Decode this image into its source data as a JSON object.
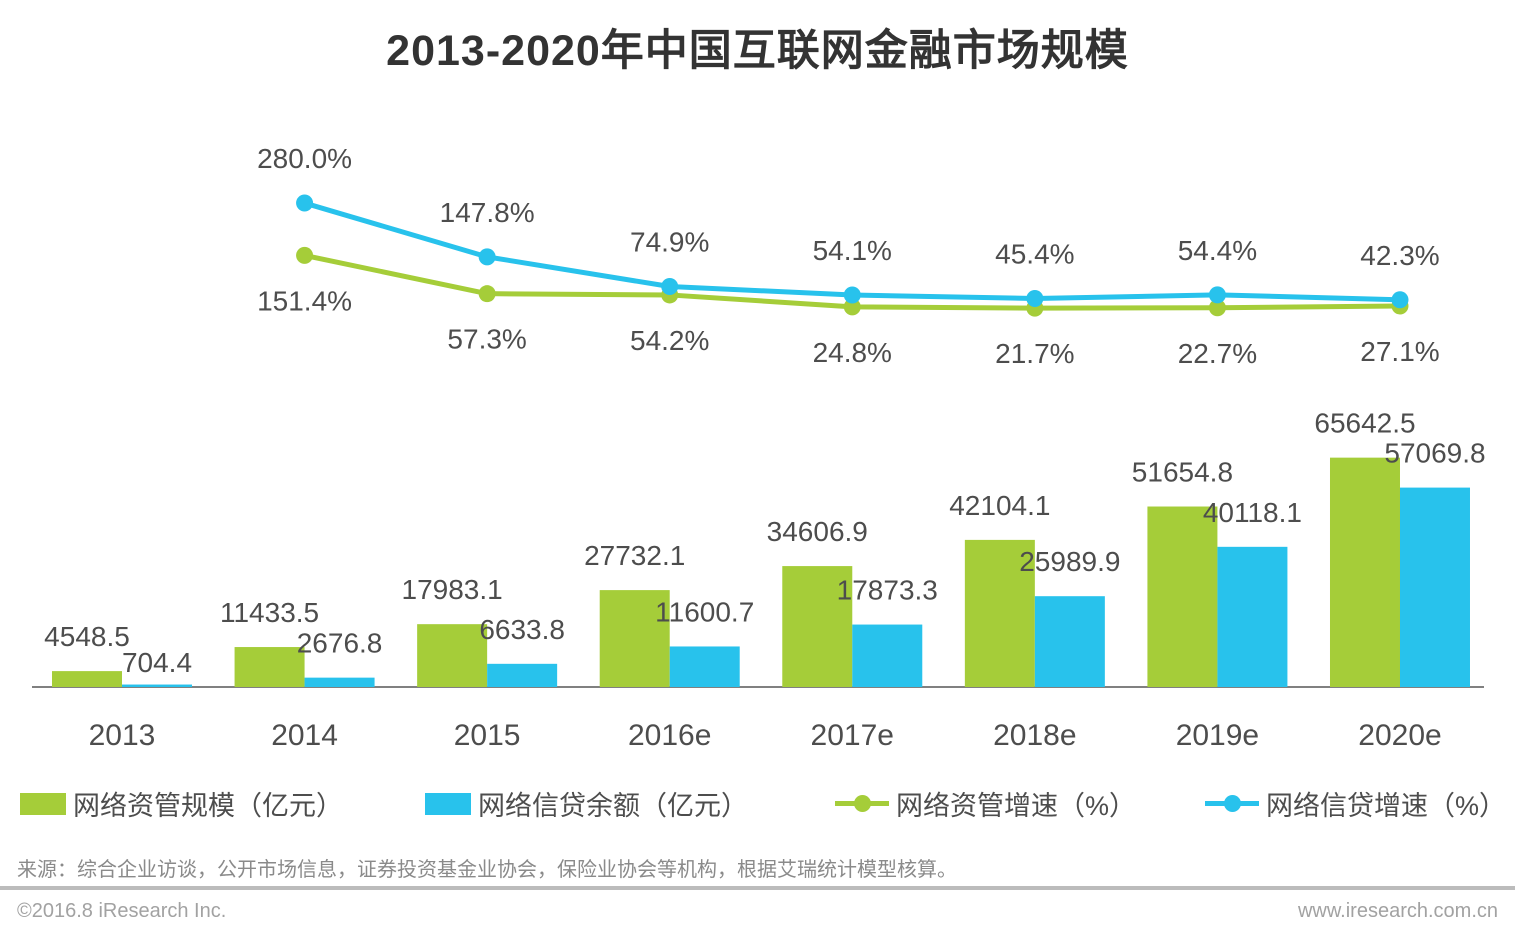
{
  "title": "2013-2020年中国互联网金融市场规模",
  "colors": {
    "green": "#a5cd39",
    "blue": "#28c2ec",
    "label": "#4d4d4d",
    "axis": "#808080"
  },
  "chart_data": {
    "type": "combo-bar-line",
    "categories": [
      "2013",
      "2014",
      "2015",
      "2016e",
      "2017e",
      "2018e",
      "2019e",
      "2020e"
    ],
    "bar_unit": "亿元",
    "line_unit": "%",
    "bar_series": [
      {
        "name": "网络资管规模（亿元）",
        "color": "#a5cd39",
        "values": [
          4548.5,
          11433.5,
          17983.1,
          27732.1,
          34606.9,
          42104.1,
          51654.8,
          65642.5
        ]
      },
      {
        "name": "网络信贷余额（亿元）",
        "color": "#28c2ec",
        "values": [
          704.4,
          2676.8,
          6633.8,
          11600.7,
          17873.3,
          25989.9,
          40118.1,
          57069.8
        ]
      }
    ],
    "line_series": [
      {
        "name": "网络资管增速（%）",
        "color": "#a5cd39",
        "first_category_index": 1,
        "label_position": "below",
        "values": [
          151.4,
          57.3,
          54.2,
          24.8,
          21.7,
          22.7,
          27.1
        ]
      },
      {
        "name": "网络信贷增速（%）",
        "color": "#28c2ec",
        "first_category_index": 1,
        "label_position": "above",
        "values": [
          280.0,
          147.8,
          74.9,
          54.1,
          45.4,
          54.4,
          42.3
        ]
      }
    ],
    "value_label_decimals": 1,
    "ylim_bars": [
      0,
      70000
    ],
    "ylim_lines_pct": [
      0,
      300
    ],
    "grid": false,
    "legend_position": "bottom"
  },
  "legend": {
    "items": [
      {
        "type": "bar",
        "label": "网络资管规模（亿元）",
        "color": "#a5cd39"
      },
      {
        "type": "bar",
        "label": "网络信贷余额（亿元）",
        "color": "#28c2ec"
      },
      {
        "type": "line",
        "label": "网络资管增速（%）",
        "color": "#a5cd39"
      },
      {
        "type": "line",
        "label": "网络信贷增速（%）",
        "color": "#28c2ec"
      }
    ]
  },
  "source": "来源：综合企业访谈，公开市场信息，证券投资基金业协会，保险业协会等机构，根据艾瑞统计模型核算。",
  "footer": {
    "left": "©2016.8 iResearch  Inc.",
    "right": "www.iresearch.com.cn"
  }
}
